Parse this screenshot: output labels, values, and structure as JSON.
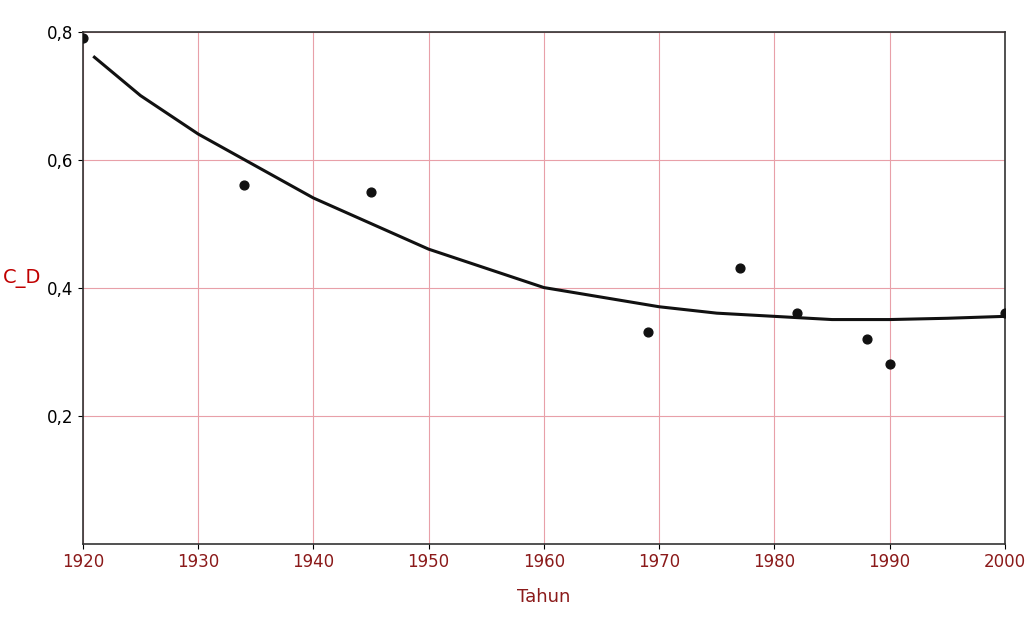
{
  "chart_data": {
    "type": "scatter",
    "x_label": "Tahun",
    "y_label": "C_D",
    "xlim": [
      1920,
      2000
    ],
    "ylim": [
      0,
      0.8
    ],
    "xticks": [
      1920,
      1930,
      1940,
      1950,
      1960,
      1970,
      1980,
      1990,
      2000
    ],
    "yticks": [
      {
        "value": 0.2,
        "label": "0,2"
      },
      {
        "value": 0.4,
        "label": "0,4"
      },
      {
        "value": 0.6,
        "label": "0,6"
      },
      {
        "value": 0.8,
        "label": "0,8"
      }
    ],
    "grid": true,
    "series": [
      {
        "type": "scatter",
        "color": "#111111",
        "marker": "circle",
        "x": [
          1920,
          1934,
          1945,
          1969,
          1977,
          1982,
          1988,
          1990,
          2000
        ],
        "values": [
          0.79,
          0.56,
          0.55,
          0.33,
          0.43,
          0.36,
          0.32,
          0.28,
          0.36
        ]
      },
      {
        "type": "line",
        "color": "#111111",
        "line_style": "solid",
        "x": [
          1921,
          1925,
          1930,
          1935,
          1940,
          1945,
          1950,
          1955,
          1960,
          1965,
          1970,
          1975,
          1980,
          1985,
          1990,
          1995,
          2000
        ],
        "values": [
          0.76,
          0.7,
          0.64,
          0.59,
          0.54,
          0.5,
          0.46,
          0.43,
          0.4,
          0.385,
          0.37,
          0.36,
          0.355,
          0.35,
          0.35,
          0.352,
          0.355
        ]
      }
    ]
  }
}
